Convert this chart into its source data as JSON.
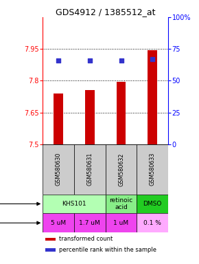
{
  "title": "GDS4912 / 1385512_at",
  "samples": [
    "GSM580630",
    "GSM580631",
    "GSM580632",
    "GSM580633"
  ],
  "bar_values": [
    7.74,
    7.755,
    7.795,
    7.945
  ],
  "dot_values": [
    66,
    66,
    66,
    67
  ],
  "ylim_left": [
    7.5,
    8.1
  ],
  "ylim_right": [
    0,
    100
  ],
  "yticks_left": [
    7.5,
    7.65,
    7.8,
    7.95
  ],
  "yticks_right": [
    0,
    25,
    50,
    75,
    100
  ],
  "hlines": [
    7.65,
    7.8,
    7.95
  ],
  "bar_color": "#cc0000",
  "dot_color": "#3333cc",
  "agent_spans": [
    [
      0,
      2,
      "KHS101",
      "#b3ffb3"
    ],
    [
      2,
      3,
      "retinoic\nacid",
      "#88ee88"
    ],
    [
      3,
      4,
      "DMSO",
      "#22cc22"
    ]
  ],
  "dose_items": [
    [
      0,
      "5 uM",
      "#ee44ee"
    ],
    [
      1,
      "1.7 uM",
      "#ee44ee"
    ],
    [
      2,
      "1 uM",
      "#ee44ee"
    ],
    [
      3,
      "0.1 %",
      "#ffaaff"
    ]
  ],
  "gsm_bg": "#cccccc",
  "legend_red": "transformed count",
  "legend_blue": "percentile rank within the sample",
  "bar_width": 0.3
}
